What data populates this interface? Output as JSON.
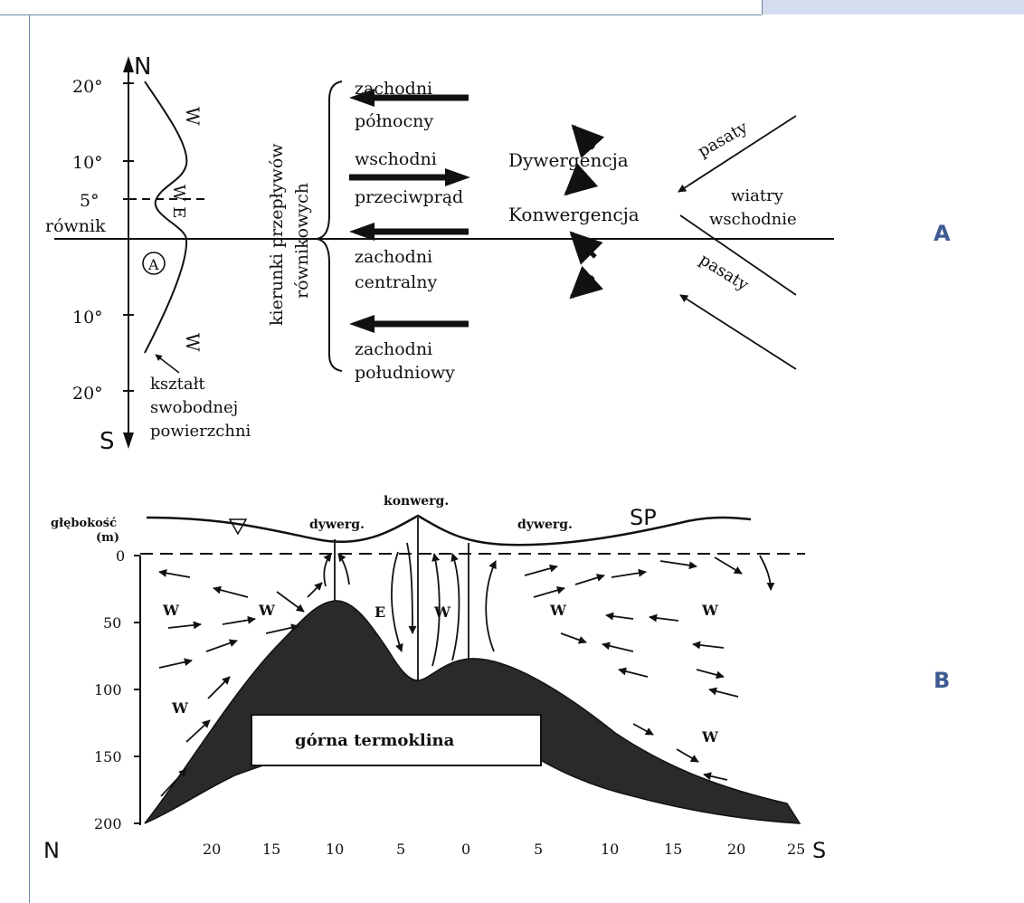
{
  "panel_labels": {
    "a": "A",
    "b": "B"
  },
  "top": {
    "north": "N",
    "south": "S",
    "lat_labels": [
      "20°",
      "10°",
      "5°",
      "równik",
      "10°",
      "20°"
    ],
    "w_north": "W",
    "we_label": "W E",
    "w_south": "W",
    "circle_a": "A",
    "surface_note": [
      "kształt",
      "swobodnej",
      "powierzchni"
    ],
    "vertical_title": [
      "kierunki przepływów",
      "równikowych"
    ],
    "currents": [
      {
        "line1": "zachodni",
        "line2": "północny"
      },
      {
        "line1": "wschodni",
        "line2": "przeciwprąd"
      },
      {
        "line1": "zachodni",
        "line2": "centralny"
      },
      {
        "line1": "zachodni",
        "line2": "południowy"
      }
    ],
    "divergence": "Dywergencja",
    "convergence": "Konwergencja",
    "trade_winds_upper": "pasaty",
    "trade_winds_lower": "pasaty",
    "east_winds": [
      "wiatry",
      "wschodnie"
    ]
  },
  "bottom": {
    "depth_title": [
      "głębokość",
      "(m)"
    ],
    "depth_ticks": [
      "0",
      "50",
      "100",
      "150",
      "200"
    ],
    "konwerg": "konwerg.",
    "dywerg_left": "dywerg.",
    "dywerg_right": "dywerg.",
    "sp": "SP",
    "current_labels": [
      "W",
      "W",
      "E",
      "W",
      "W",
      "W",
      "W",
      "W"
    ],
    "thermocline": "górna termoklina",
    "n_label": "N",
    "s_label": "S",
    "x_ticks": [
      "20",
      "15",
      "10",
      "5",
      "0",
      "5",
      "10",
      "15",
      "20",
      "25"
    ]
  },
  "colors": {
    "frame": "#6b86a8",
    "topbar": "#d4dcef",
    "label": "#3f5a93"
  }
}
